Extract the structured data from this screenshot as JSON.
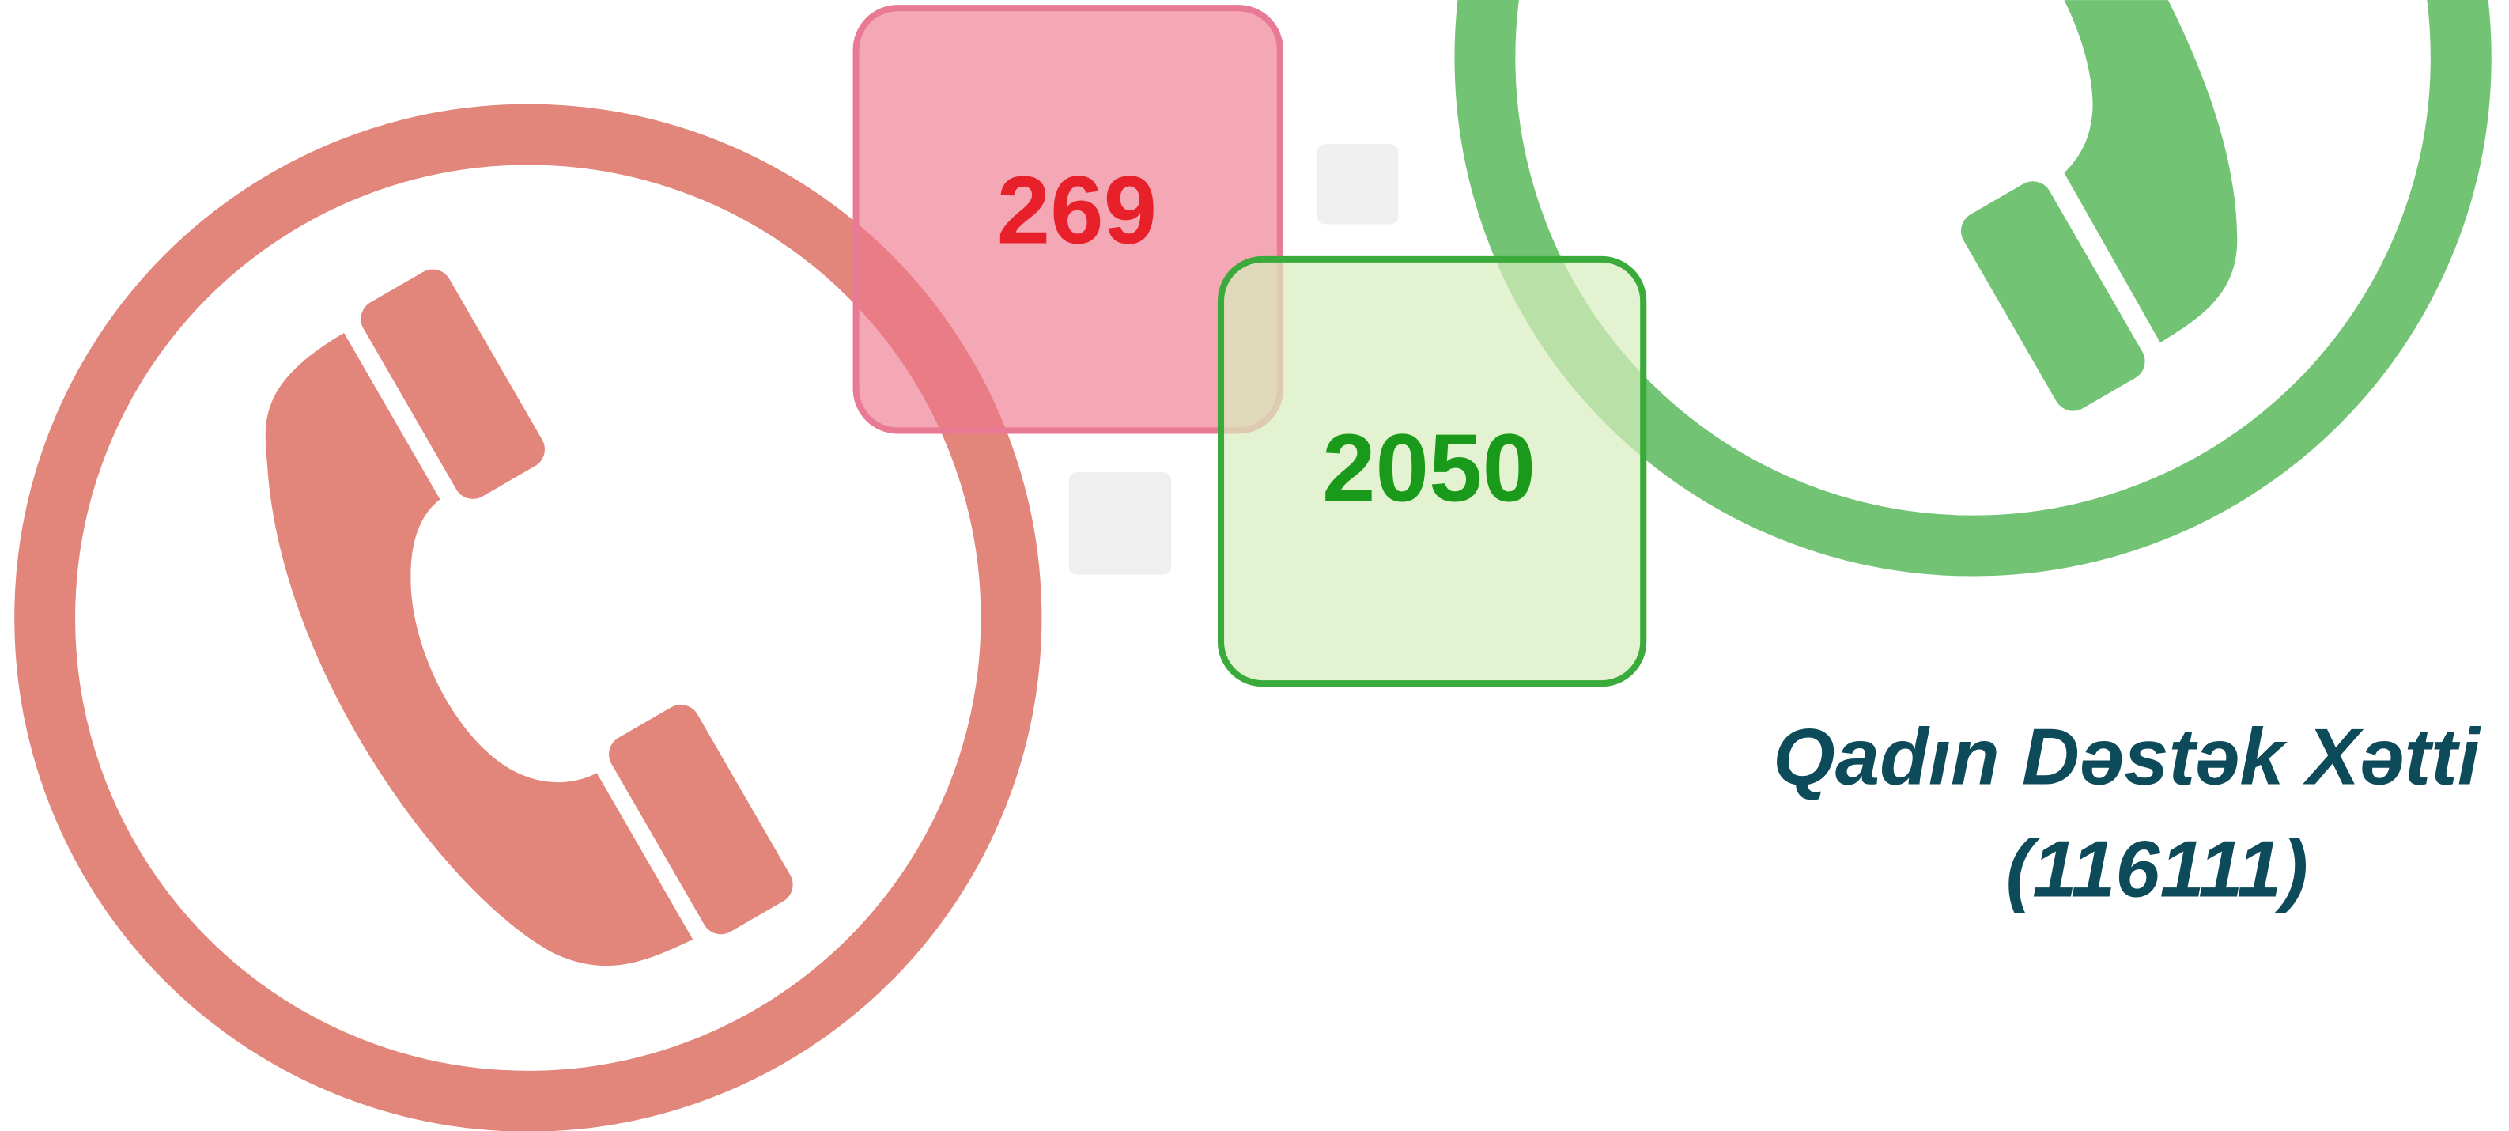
{
  "badges": [
    {
      "label": "269"
    },
    {
      "label": "2050"
    }
  ],
  "helpline": {
    "name": "Qadın Dəstək Xətti",
    "number": "(116111)"
  }
}
